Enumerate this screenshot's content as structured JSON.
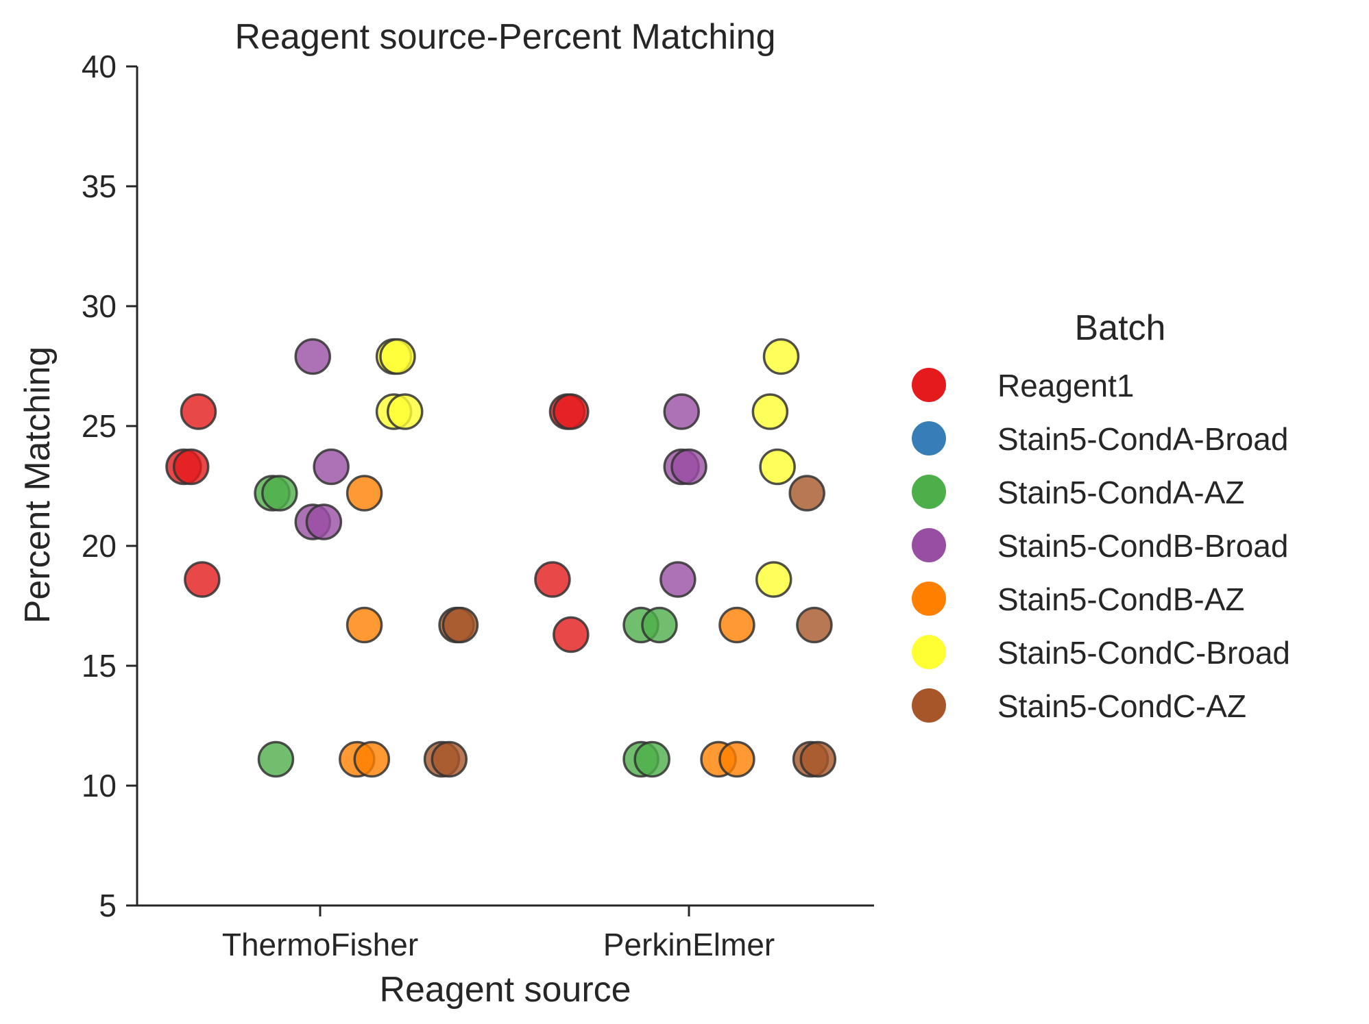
{
  "chart_data": {
    "type": "scatter",
    "title": "Reagent source-Percent Matching",
    "xlabel": "Reagent source",
    "ylabel": "Percent Matching",
    "categories": [
      "ThermoFisher",
      "PerkinElmer"
    ],
    "ylim": [
      5,
      40
    ],
    "yticks": [
      5,
      10,
      15,
      20,
      25,
      30,
      35,
      40
    ],
    "grid": false,
    "legend": {
      "title": "Batch",
      "placement": "right"
    },
    "series": [
      {
        "name": "Reagent1",
        "color": "#e41a1c",
        "points": [
          {
            "category": "ThermoFisher",
            "offset": -0.37,
            "y": 23.3
          },
          {
            "category": "ThermoFisher",
            "offset": -0.35,
            "y": 23.3
          },
          {
            "category": "ThermoFisher",
            "offset": -0.33,
            "y": 25.6
          },
          {
            "category": "ThermoFisher",
            "offset": -0.32,
            "y": 18.6
          },
          {
            "category": "PerkinElmer",
            "offset": -0.37,
            "y": 18.6
          },
          {
            "category": "PerkinElmer",
            "offset": -0.32,
            "y": 16.3
          },
          {
            "category": "PerkinElmer",
            "offset": -0.33,
            "y": 25.6
          },
          {
            "category": "PerkinElmer",
            "offset": -0.32,
            "y": 25.6
          }
        ]
      },
      {
        "name": "Stain5-CondA-Broad",
        "color": "#377eb8",
        "points": []
      },
      {
        "name": "Stain5-CondA-AZ",
        "color": "#4daf4a",
        "points": [
          {
            "category": "ThermoFisher",
            "offset": -0.13,
            "y": 22.2
          },
          {
            "category": "ThermoFisher",
            "offset": -0.11,
            "y": 22.2
          },
          {
            "category": "ThermoFisher",
            "offset": -0.12,
            "y": 11.1
          },
          {
            "category": "PerkinElmer",
            "offset": -0.13,
            "y": 16.7
          },
          {
            "category": "PerkinElmer",
            "offset": -0.08,
            "y": 16.7
          },
          {
            "category": "PerkinElmer",
            "offset": -0.13,
            "y": 11.1
          },
          {
            "category": "PerkinElmer",
            "offset": -0.1,
            "y": 11.1
          }
        ]
      },
      {
        "name": "Stain5-CondB-Broad",
        "color": "#984ea3",
        "points": [
          {
            "category": "ThermoFisher",
            "offset": -0.02,
            "y": 27.9
          },
          {
            "category": "ThermoFisher",
            "offset": 0.03,
            "y": 23.3
          },
          {
            "category": "ThermoFisher",
            "offset": -0.02,
            "y": 21.0
          },
          {
            "category": "ThermoFisher",
            "offset": 0.01,
            "y": 21.0
          },
          {
            "category": "PerkinElmer",
            "offset": -0.02,
            "y": 25.6
          },
          {
            "category": "PerkinElmer",
            "offset": -0.02,
            "y": 23.3
          },
          {
            "category": "PerkinElmer",
            "offset": 0.0,
            "y": 23.3
          },
          {
            "category": "PerkinElmer",
            "offset": -0.03,
            "y": 18.6
          }
        ]
      },
      {
        "name": "Stain5-CondB-AZ",
        "color": "#ff7f00",
        "points": [
          {
            "category": "ThermoFisher",
            "offset": 0.12,
            "y": 22.2
          },
          {
            "category": "ThermoFisher",
            "offset": 0.12,
            "y": 16.7
          },
          {
            "category": "ThermoFisher",
            "offset": 0.1,
            "y": 11.1
          },
          {
            "category": "ThermoFisher",
            "offset": 0.14,
            "y": 11.1
          },
          {
            "category": "PerkinElmer",
            "offset": 0.13,
            "y": 16.7
          },
          {
            "category": "PerkinElmer",
            "offset": 0.08,
            "y": 11.1
          },
          {
            "category": "PerkinElmer",
            "offset": 0.13,
            "y": 11.1
          }
        ]
      },
      {
        "name": "Stain5-CondC-Broad",
        "color": "#ffff33",
        "points": [
          {
            "category": "ThermoFisher",
            "offset": 0.2,
            "y": 27.9
          },
          {
            "category": "ThermoFisher",
            "offset": 0.21,
            "y": 27.9
          },
          {
            "category": "ThermoFisher",
            "offset": 0.2,
            "y": 25.6
          },
          {
            "category": "ThermoFisher",
            "offset": 0.23,
            "y": 25.6
          },
          {
            "category": "PerkinElmer",
            "offset": 0.25,
            "y": 27.9
          },
          {
            "category": "PerkinElmer",
            "offset": 0.22,
            "y": 25.6
          },
          {
            "category": "PerkinElmer",
            "offset": 0.24,
            "y": 23.3
          },
          {
            "category": "PerkinElmer",
            "offset": 0.23,
            "y": 18.6
          }
        ]
      },
      {
        "name": "Stain5-CondC-AZ",
        "color": "#a65628",
        "points": [
          {
            "category": "ThermoFisher",
            "offset": 0.37,
            "y": 16.7
          },
          {
            "category": "ThermoFisher",
            "offset": 0.38,
            "y": 16.7
          },
          {
            "category": "ThermoFisher",
            "offset": 0.33,
            "y": 11.1
          },
          {
            "category": "ThermoFisher",
            "offset": 0.35,
            "y": 11.1
          },
          {
            "category": "PerkinElmer",
            "offset": 0.32,
            "y": 22.2
          },
          {
            "category": "PerkinElmer",
            "offset": 0.34,
            "y": 16.7
          },
          {
            "category": "PerkinElmer",
            "offset": 0.33,
            "y": 11.1
          },
          {
            "category": "PerkinElmer",
            "offset": 0.35,
            "y": 11.1
          }
        ]
      }
    ]
  }
}
